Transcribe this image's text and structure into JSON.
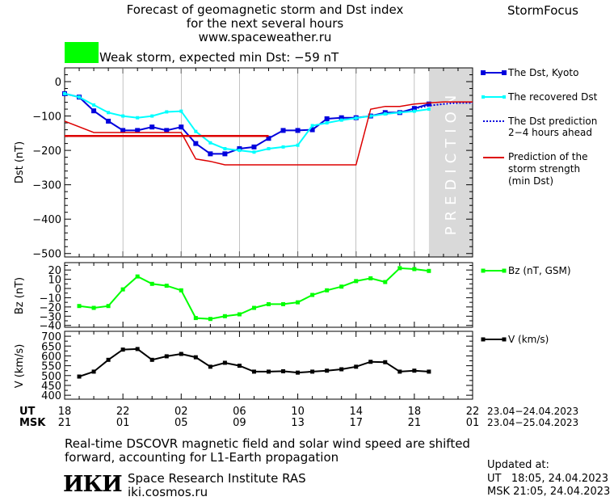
{
  "header": {
    "title_line1": "Forecast of geomagnetic storm and Dst index",
    "title_line2": "for the next several hours",
    "site": "www.spaceweather.ru",
    "brand": "StormFocus"
  },
  "storm_status": {
    "color": "#00ff00",
    "text": "Weak storm, expected min Dst: −59 nT"
  },
  "prediction_label": "PREDICTION",
  "colors": {
    "dst": "#0000dd",
    "recovered": "#00ffff",
    "prediction": "#dd0000",
    "bz": "#00ff00",
    "v": "#000000",
    "prediction_zone": "#d9d9d9"
  },
  "time_axis": {
    "ut_label": "UT",
    "msk_label": "MSK",
    "ut_ticks": [
      "18",
      "22",
      "02",
      "06",
      "10",
      "14",
      "18",
      "22"
    ],
    "msk_ticks": [
      "21",
      "01",
      "05",
      "09",
      "13",
      "17",
      "21",
      "01"
    ],
    "ut_dates": "23.04−24.04.2023",
    "msk_dates": "23.04−25.04.2023"
  },
  "chart_data": [
    {
      "type": "line",
      "ylabel": "Dst (nT)",
      "ylim": [
        -510,
        40
      ],
      "yticks": [
        "0",
        "−100",
        "−200",
        "−300",
        "−400",
        "−500"
      ],
      "xlim": [
        18,
        46
      ],
      "prediction_zone": [
        43,
        46
      ],
      "legend": [
        "The Dst, Kyoto",
        "The recovered Dst",
        "The Dst prediction 2−4 hours ahead",
        "Prediction of the storm strength (min Dst)"
      ],
      "series": [
        {
          "name": "The Dst, Kyoto",
          "x": [
            18,
            19,
            20,
            21,
            22,
            23,
            24,
            25,
            26,
            27,
            28,
            29,
            30,
            31,
            32,
            33,
            34,
            35,
            36,
            37,
            38,
            39,
            40,
            41,
            42,
            43
          ],
          "y": [
            -35,
            -45,
            -85,
            -115,
            -142,
            -142,
            -132,
            -142,
            -132,
            -180,
            -210,
            -210,
            -195,
            -190,
            -165,
            -142,
            -142,
            -140,
            -108,
            -105,
            -105,
            -100,
            -90,
            -90,
            -78,
            -65
          ]
        },
        {
          "name": "The recovered Dst",
          "x": [
            18,
            19,
            20,
            21,
            22,
            23,
            24,
            25,
            26,
            27,
            28,
            29,
            30,
            31,
            32,
            33,
            34,
            35,
            36,
            37,
            38,
            39,
            40,
            41,
            42,
            43
          ],
          "y": [
            -35,
            -45,
            -68,
            -90,
            -100,
            -105,
            -100,
            -88,
            -86,
            -145,
            -178,
            -195,
            -200,
            -205,
            -195,
            -190,
            -185,
            -128,
            -120,
            -112,
            -106,
            -100,
            -94,
            -90,
            -86,
            -80
          ]
        },
        {
          "name": "The Dst prediction 2−4 hours ahead",
          "x": [
            42,
            43,
            44,
            45,
            46
          ],
          "y": [
            -78,
            -70,
            -65,
            -62,
            -62
          ]
        },
        {
          "name": "Prediction of the storm strength (min Dst)",
          "x": [
            18,
            20,
            21,
            25,
            26,
            27,
            28,
            29,
            33,
            34,
            38,
            39,
            40,
            41,
            42,
            43,
            44,
            45,
            46
          ],
          "y": [
            -115,
            -148,
            -148,
            -148,
            -148,
            -225,
            -232,
            -242,
            -242,
            -242,
            -242,
            -80,
            -72,
            -72,
            -65,
            -62,
            -59,
            -59,
            -59
          ]
        },
        {
          "name": "min Dst level",
          "x": [
            18,
            32
          ],
          "y": [
            -158,
            -158
          ]
        }
      ]
    },
    {
      "type": "line",
      "ylabel": "Bz (nT)",
      "ylim": [
        -42,
        28
      ],
      "yticks": [
        "20",
        "10",
        "0",
        "−10",
        "−20",
        "−30",
        "−40"
      ],
      "xlim": [
        18,
        46
      ],
      "legend": [
        "Bz (nT, GSM)"
      ],
      "series": [
        {
          "name": "Bz (nT, GSM)",
          "x": [
            19,
            20,
            21,
            22,
            23,
            24,
            25,
            26,
            27,
            28,
            29,
            30,
            31,
            32,
            33,
            34,
            35,
            36,
            37,
            38,
            39,
            40,
            41,
            42,
            43
          ],
          "y": [
            -19,
            -21,
            -19,
            -1,
            13,
            5,
            3,
            -2,
            -32,
            -33,
            -30,
            -28,
            -21,
            -17,
            -17,
            -15,
            -7,
            -2,
            2,
            8,
            11,
            7,
            22,
            21,
            19
          ]
        }
      ]
    },
    {
      "type": "line",
      "ylabel": "V (km/s)",
      "ylim": [
        380,
        725
      ],
      "yticks": [
        "700",
        "650",
        "600",
        "550",
        "500",
        "450",
        "400"
      ],
      "xlim": [
        18,
        46
      ],
      "legend": [
        "V (km/s)"
      ],
      "series": [
        {
          "name": "V (km/s)",
          "x": [
            19,
            20,
            21,
            22,
            23,
            24,
            25,
            26,
            27,
            28,
            29,
            30,
            31,
            32,
            33,
            34,
            35,
            36,
            37,
            38,
            39,
            40,
            41,
            42,
            43
          ],
          "y": [
            495,
            520,
            580,
            632,
            635,
            580,
            598,
            610,
            593,
            545,
            565,
            550,
            520,
            520,
            522,
            515,
            520,
            525,
            532,
            545,
            570,
            568,
            520,
            525,
            520
          ]
        }
      ]
    }
  ],
  "footer": {
    "note_line1": "Real-time DSCOVR magnetic field and solar wind speed are shifted",
    "note_line2": "forward, accounting for L1-Earth propagation",
    "logo": "ИКИ",
    "institute": "Space Research Institute RAS",
    "institute_site": "iki.cosmos.ru",
    "updated_label": "Updated at:",
    "updated_ut": "UT   18:05, 24.04.2023",
    "updated_msk": "MSK 21:05, 24.04.2023"
  }
}
